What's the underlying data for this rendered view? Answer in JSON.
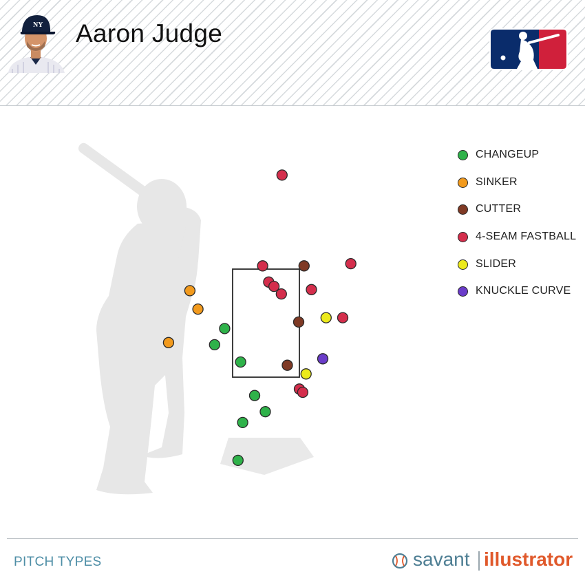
{
  "player": {
    "name": "Aaron Judge"
  },
  "icons": {
    "headshot": "player-headshot",
    "league_logo": "mlb-logo-icon",
    "brand_ball": "baseball-icon"
  },
  "footer": {
    "label": "PITCH TYPES",
    "brand_savant": "savant",
    "brand_illustrator": "illustrator"
  },
  "colors": {
    "brand_savant": "#4f7f94",
    "brand_illustrator": "#e0592b",
    "footer_label": "#4e8ea6"
  },
  "chart_data": {
    "type": "scatter",
    "title": "",
    "xlabel": "",
    "ylabel": "",
    "x_unit": "horizontal location (strike zone widths from left edge, catcher view)",
    "y_unit": "vertical location (strike zone heights from bottom edge)",
    "strike_zone": {
      "x": [
        0,
        1
      ],
      "y": [
        0,
        1
      ]
    },
    "grid": false,
    "legend_position": "top-right",
    "legend": [
      {
        "name": "CHANGEUP",
        "color": "#2fb24a"
      },
      {
        "name": "SINKER",
        "color": "#f29a1d"
      },
      {
        "name": "CUTTER",
        "color": "#7f3a25"
      },
      {
        "name": "4-SEAM FASTBALL",
        "color": "#d42e4c"
      },
      {
        "name": "SLIDER",
        "color": "#ecea1c"
      },
      {
        "name": "KNUCKLE CURVE",
        "color": "#6a3cc9"
      }
    ],
    "series": [
      {
        "name": "CHANGEUP",
        "color": "#2fb24a",
        "points": [
          {
            "x": -0.12,
            "y": 0.45
          },
          {
            "x": -0.27,
            "y": 0.3
          },
          {
            "x": 0.12,
            "y": 0.14
          },
          {
            "x": 0.33,
            "y": -0.17
          },
          {
            "x": 0.49,
            "y": -0.32
          },
          {
            "x": 0.15,
            "y": -0.42
          },
          {
            "x": 0.08,
            "y": -0.77
          }
        ]
      },
      {
        "name": "SINKER",
        "color": "#f29a1d",
        "points": [
          {
            "x": -0.64,
            "y": 0.8
          },
          {
            "x": -0.52,
            "y": 0.63
          },
          {
            "x": -0.96,
            "y": 0.32
          }
        ]
      },
      {
        "name": "CUTTER",
        "color": "#7f3a25",
        "points": [
          {
            "x": 1.07,
            "y": 1.03
          },
          {
            "x": 0.99,
            "y": 0.51
          },
          {
            "x": 0.82,
            "y": 0.11
          }
        ]
      },
      {
        "name": "4-SEAM FASTBALL",
        "color": "#d42e4c",
        "points": [
          {
            "x": 0.74,
            "y": 1.87
          },
          {
            "x": 0.45,
            "y": 1.03
          },
          {
            "x": 1.77,
            "y": 1.05
          },
          {
            "x": 0.54,
            "y": 0.88
          },
          {
            "x": 0.62,
            "y": 0.84
          },
          {
            "x": 0.73,
            "y": 0.77
          },
          {
            "x": 1.18,
            "y": 0.81
          },
          {
            "x": 1.65,
            "y": 0.55
          },
          {
            "x": 1.0,
            "y": -0.11
          },
          {
            "x": 1.05,
            "y": -0.14
          }
        ]
      },
      {
        "name": "SLIDER",
        "color": "#ecea1c",
        "points": [
          {
            "x": 1.4,
            "y": 0.55
          },
          {
            "x": 1.1,
            "y": 0.03
          }
        ]
      },
      {
        "name": "KNUCKLE CURVE",
        "color": "#6a3cc9",
        "points": [
          {
            "x": 1.35,
            "y": 0.17
          }
        ]
      }
    ]
  }
}
